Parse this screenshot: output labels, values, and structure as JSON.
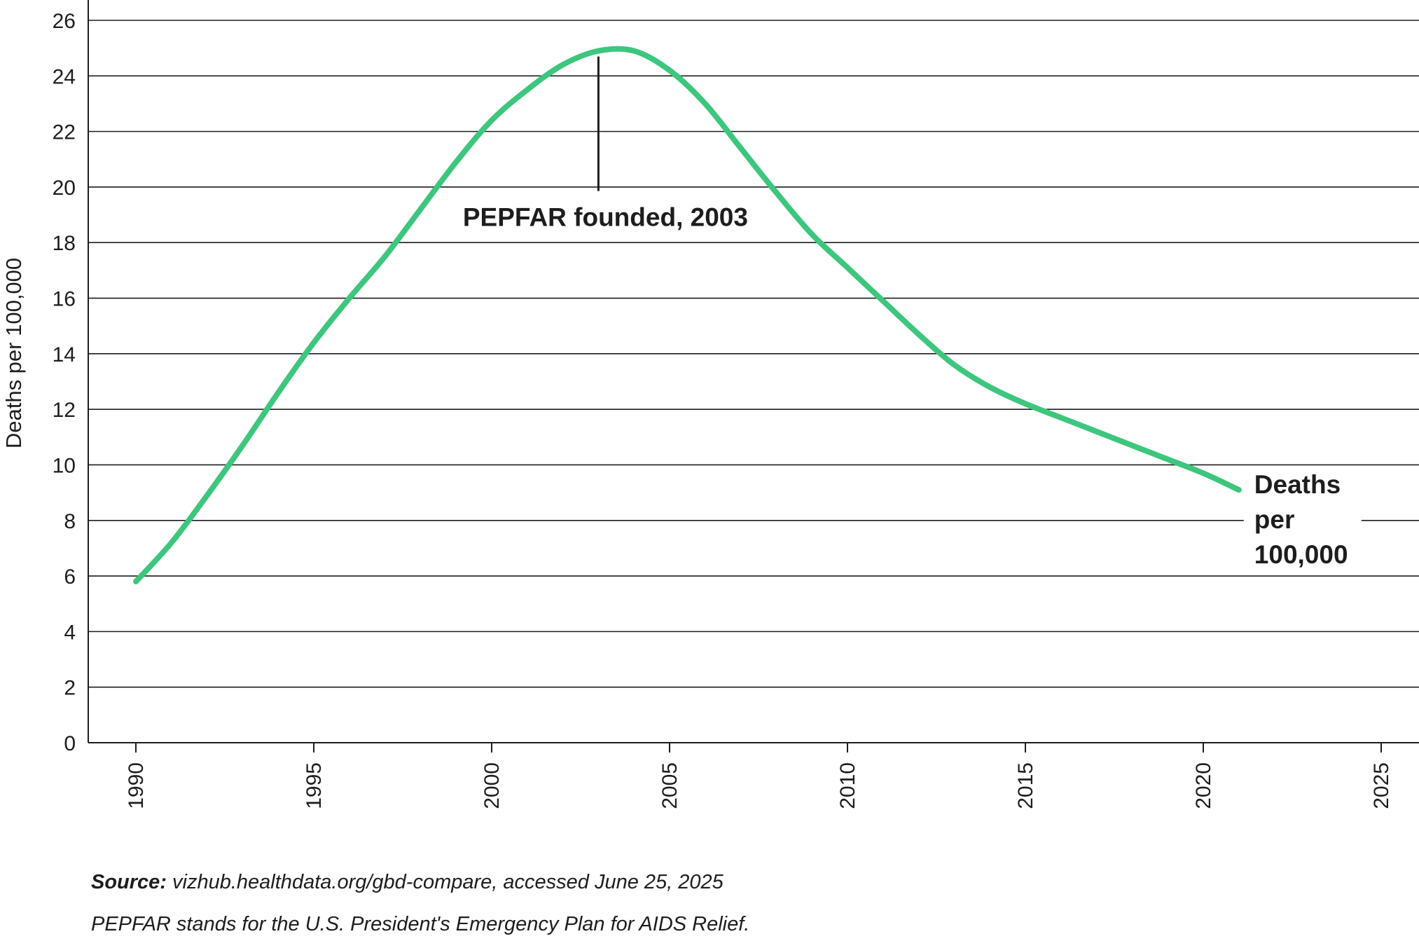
{
  "chart_data": {
    "type": "line",
    "ylabel": "Deaths per 100,000",
    "xlim": [
      1988.8,
      2026
    ],
    "ylim": [
      0,
      26
    ],
    "yticks": [
      0,
      2,
      4,
      6,
      8,
      10,
      12,
      14,
      16,
      18,
      20,
      22,
      24,
      26
    ],
    "xticks": [
      1990,
      1995,
      2000,
      2005,
      2010,
      2015,
      2020,
      2025
    ],
    "grid": true,
    "series": [
      {
        "name": "Deaths per 100,000",
        "name_lines": [
          "Deaths",
          "per",
          "100,000"
        ],
        "color": "#3dc67d",
        "x": [
          1990,
          1991,
          1992,
          1993,
          1994,
          1995,
          1996,
          1997,
          1998,
          1999,
          2000,
          2001,
          2002,
          2003,
          2004,
          2005,
          2006,
          2007,
          2008,
          2009,
          2010,
          2011,
          2012,
          2013,
          2014,
          2015,
          2016,
          2017,
          2018,
          2019,
          2020,
          2021
        ],
        "values": [
          5.8,
          7.2,
          8.9,
          10.7,
          12.6,
          14.4,
          16.0,
          17.5,
          19.2,
          20.9,
          22.4,
          23.5,
          24.4,
          24.9,
          24.9,
          24.2,
          23.0,
          21.4,
          19.8,
          18.3,
          17.1,
          15.9,
          14.7,
          13.6,
          12.8,
          12.2,
          11.7,
          11.2,
          10.7,
          10.2,
          9.7,
          9.1
        ]
      }
    ],
    "annotations": [
      {
        "text": "PEPFAR founded, 2003",
        "x": 2003,
        "y": 24.9
      }
    ]
  },
  "footer": {
    "source_label": "Source:",
    "source_text": " vizhub.healthdata.org/gbd-compare, accessed June 25, 2025",
    "note": "PEPFAR stands for the U.S. President's Emergency Plan for AIDS Relief."
  }
}
